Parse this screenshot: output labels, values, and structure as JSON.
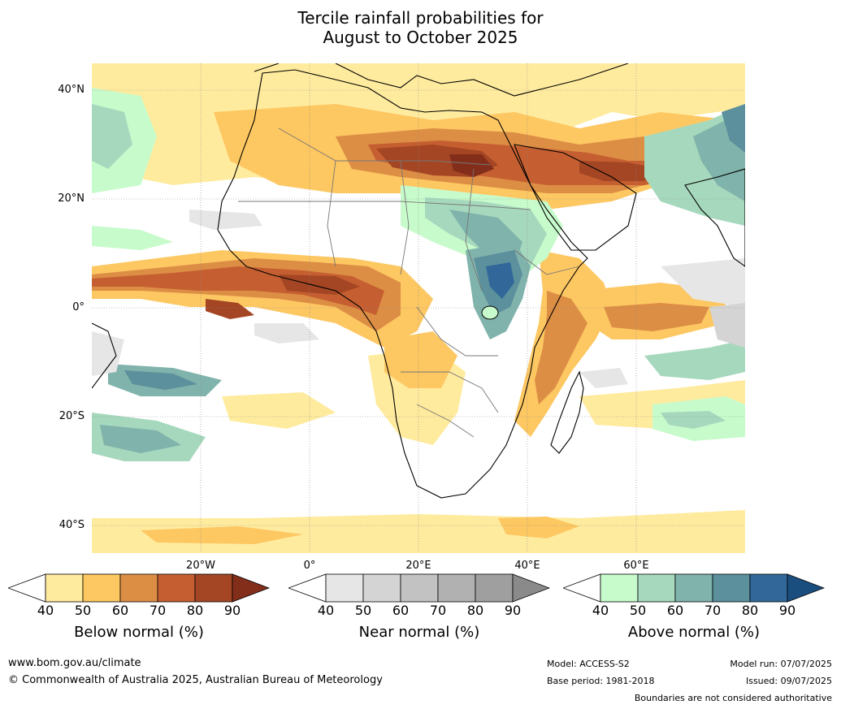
{
  "title": {
    "line1": "Tercile rainfall probabilities for",
    "line2": "August to October 2025"
  },
  "lat_labels": [
    "40°N",
    "20°N",
    "0°",
    "20°S",
    "40°S"
  ],
  "lon_labels": [
    "20°W",
    "0°",
    "20°E",
    "40°E",
    "60°E"
  ],
  "colorbars": [
    {
      "title": "Below normal (%)",
      "ticks": [
        "40",
        "50",
        "60",
        "70",
        "80",
        "90"
      ],
      "colors": [
        "#ffeb9e",
        "#fdc762",
        "#dd8e45",
        "#c55f31",
        "#a44624",
        "#832e1a"
      ]
    },
    {
      "title": "Near normal (%)",
      "ticks": [
        "40",
        "50",
        "60",
        "70",
        "80",
        "90"
      ],
      "colors": [
        "#e6e6e6",
        "#d4d4d4",
        "#c2c2c2",
        "#b1b1b1",
        "#9f9f9f",
        "#8a8a8a"
      ]
    },
    {
      "title": "Above normal (%)",
      "ticks": [
        "40",
        "50",
        "60",
        "70",
        "80",
        "90"
      ],
      "colors": [
        "#c7fbcb",
        "#a6d8bd",
        "#80b3ab",
        "#5b909c",
        "#32679a",
        "#1a4e7f"
      ]
    }
  ],
  "footer": {
    "url": "www.bom.gov.au/climate",
    "copyright": "© Commonwealth of Australia 2025, Australian Bureau of Meteorology",
    "model": "Model: ACCESS-S2",
    "base_period": "Base period: 1981-2018",
    "model_run": "Model run: 07/07/2025",
    "issued": "Issued: 09/07/2025",
    "disclaimer": "Boundaries are not considered authoritative"
  }
}
